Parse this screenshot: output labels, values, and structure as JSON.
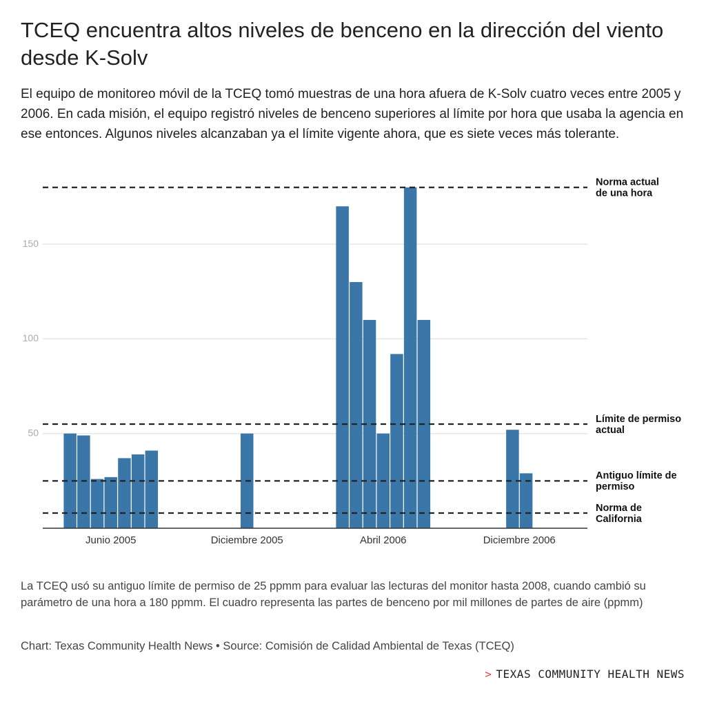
{
  "chart_data": {
    "type": "bar",
    "title": "TCEQ encuentra altos niveles de benceno en la dirección del viento desde K-Solv",
    "subtitle": "El equipo de monitoreo móvil de la TCEQ tomó muestras de una hora afuera de K-Solv cuatro veces entre 2005 y 2006. En cada misión, el equipo registró niveles de benceno superiores al límite por hora que usaba la agencia en ese entonces. Algunos niveles alcanzaban ya el límite vigente ahora, que es siete veces más tolerante.",
    "color": "#3a76a8",
    "groups": [
      {
        "name": "Junio 2005",
        "values": [
          50,
          49,
          26,
          27,
          37,
          39,
          41
        ]
      },
      {
        "name": "Diciembre 2005",
        "values": [
          50
        ]
      },
      {
        "name": "Abril 2006",
        "values": [
          170,
          130,
          110,
          50,
          92,
          180,
          110
        ]
      },
      {
        "name": "Diciembre 2006",
        "values": [
          52,
          29
        ]
      }
    ],
    "reference_lines": [
      {
        "value": 180,
        "label": [
          "Norma actual",
          "de una hora"
        ]
      },
      {
        "value": 55,
        "label": [
          "Límite de permiso",
          "actual"
        ]
      },
      {
        "value": 25,
        "label": [
          "Antiguo límite de",
          "permiso"
        ]
      },
      {
        "value": 8,
        "label": [
          "Norma de",
          "California"
        ]
      }
    ],
    "ylim": [
      0,
      185
    ],
    "yticks": [
      50,
      100,
      150
    ],
    "grid": true,
    "note": "La TCEQ usó su antiguo límite de permiso de 25 ppmm para evaluar las lecturas del monitor hasta 2008, cuando cambió su parámetro de una hora a 180 ppmm. El cuadro representa las partes de benceno por mil millones de partes de aire (ppmm)",
    "credit": "Chart: Texas Community Health News • Source: Comisión de Calidad Ambiental de Texas (TCEQ)",
    "brand_mark": ">",
    "brand": "TEXAS COMMUNITY HEALTH NEWS"
  }
}
